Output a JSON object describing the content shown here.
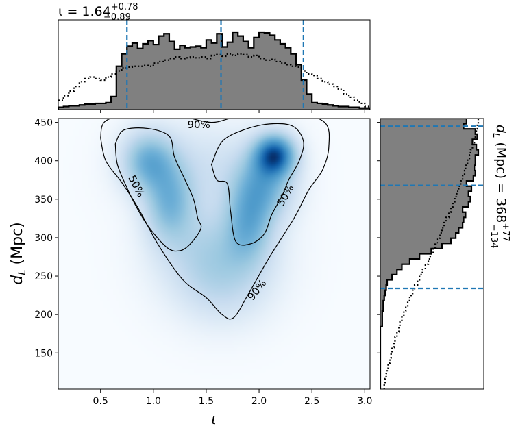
{
  "chart_data": {
    "type": "corner",
    "x_param": {
      "symbol": "ι",
      "label": "ι",
      "median": 1.64,
      "upper": 0.78,
      "lower": 0.89,
      "title_main": "ι = 1.64",
      "title_sup": "+0.78",
      "title_sub": "−0.89",
      "xlim": [
        0.1,
        3.05
      ],
      "ticks": [
        {
          "v": 0.5,
          "label": "0.5"
        },
        {
          "v": 1.0,
          "label": "1.0"
        },
        {
          "v": 1.5,
          "label": "1.5"
        },
        {
          "v": 2.0,
          "label": "2.0"
        },
        {
          "v": 2.5,
          "label": "2.5"
        },
        {
          "v": 3.0,
          "label": "3.0"
        }
      ],
      "dashed_lines": [
        0.75,
        1.64,
        2.42
      ],
      "posterior": [
        0.03,
        0.04,
        0.05,
        0.05,
        0.06,
        0.07,
        0.07,
        0.08,
        0.08,
        0.09,
        0.17,
        0.56,
        0.72,
        0.82,
        0.86,
        0.79,
        0.85,
        0.89,
        0.84,
        0.95,
        0.98,
        0.88,
        0.78,
        0.83,
        0.8,
        0.81,
        0.82,
        0.8,
        0.9,
        0.86,
        0.98,
        0.81,
        0.87,
        1.0,
        0.95,
        0.88,
        0.8,
        0.93,
        1.0,
        0.99,
        0.96,
        0.9,
        0.85,
        0.8,
        0.72,
        0.58,
        0.38,
        0.2,
        0.09,
        0.08,
        0.07,
        0.06,
        0.05,
        0.04,
        0.04,
        0.03,
        0.03,
        0.02,
        0.02
      ],
      "prior": [
        0.12,
        0.18,
        0.24,
        0.3,
        0.36,
        0.4,
        0.42,
        0.4,
        0.38,
        0.42,
        0.46,
        0.5,
        0.54,
        0.55,
        0.56,
        0.56,
        0.57,
        0.56,
        0.6,
        0.62,
        0.64,
        0.66,
        0.68,
        0.66,
        0.67,
        0.68,
        0.67,
        0.68,
        0.66,
        0.7,
        0.71,
        0.69,
        0.72,
        0.7,
        0.72,
        0.71,
        0.68,
        0.7,
        0.66,
        0.64,
        0.65,
        0.62,
        0.6,
        0.58,
        0.56,
        0.55,
        0.5,
        0.46,
        0.44,
        0.4,
        0.36,
        0.33,
        0.3,
        0.26,
        0.2,
        0.16,
        0.12,
        0.08,
        0.04
      ]
    },
    "y_param": {
      "symbol": "d_L",
      "label_main": "d",
      "label_sub": "L",
      "label_unit": " (Mpc)",
      "median": 368,
      "upper": 77,
      "lower": 134,
      "title_main": "d",
      "title_sub_L": "L",
      "title_rest": " (Mpc) = 368",
      "title_sup": "+77",
      "title_sub": "−134",
      "ylim": [
        103,
        455
      ],
      "ticks": [
        {
          "v": 150,
          "label": "150"
        },
        {
          "v": 200,
          "label": "200"
        },
        {
          "v": 250,
          "label": "250"
        },
        {
          "v": 300,
          "label": "300"
        },
        {
          "v": 350,
          "label": "350"
        },
        {
          "v": 400,
          "label": "400"
        },
        {
          "v": 450,
          "label": "450"
        }
      ],
      "dashed_lines": [
        234,
        368,
        445
      ],
      "posterior": [
        0,
        0,
        0,
        0,
        0,
        0,
        0,
        0,
        0,
        0,
        0,
        0,
        0.02,
        0.02,
        0.02,
        0.03,
        0.03,
        0.04,
        0.05,
        0.06,
        0.07,
        0.12,
        0.17,
        0.22,
        0.3,
        0.4,
        0.52,
        0.63,
        0.72,
        0.77,
        0.8,
        0.84,
        0.85,
        0.87,
        0.84,
        0.9,
        0.92,
        0.9,
        0.93,
        0.88,
        0.95,
        0.97,
        0.96,
        0.97,
        0.97,
        1.0,
        0.98,
        0.94,
        0.99,
        0.97,
        0.85,
        0.88
      ],
      "prior": [
        0.04,
        0.05,
        0.06,
        0.07,
        0.08,
        0.1,
        0.11,
        0.12,
        0.14,
        0.15,
        0.17,
        0.19,
        0.2,
        0.22,
        0.24,
        0.26,
        0.28,
        0.3,
        0.33,
        0.35,
        0.38,
        0.4,
        0.43,
        0.46,
        0.49,
        0.51,
        0.54,
        0.56,
        0.58,
        0.61,
        0.63,
        0.65,
        0.67,
        0.7,
        0.72,
        0.74,
        0.76,
        0.78,
        0.8,
        0.82,
        0.84,
        0.86,
        0.87,
        0.89,
        0.91,
        0.92,
        0.94,
        0.96,
        0.97,
        0.98,
        0.99,
        1.0
      ]
    },
    "density_blobs": [
      {
        "x": 0.95,
        "y": 400,
        "sx": 0.17,
        "sy": 26,
        "w": 0.55
      },
      {
        "x": 1.15,
        "y": 345,
        "sx": 0.16,
        "sy": 35,
        "w": 0.5
      },
      {
        "x": 2.15,
        "y": 408,
        "sx": 0.13,
        "sy": 18,
        "w": 1.0
      },
      {
        "x": 2.05,
        "y": 370,
        "sx": 0.19,
        "sy": 32,
        "w": 0.55
      },
      {
        "x": 1.9,
        "y": 320,
        "sx": 0.15,
        "sy": 35,
        "w": 0.45
      },
      {
        "x": 1.6,
        "y": 280,
        "sx": 0.35,
        "sy": 40,
        "w": 0.35
      },
      {
        "x": 1.45,
        "y": 390,
        "sx": 0.4,
        "sy": 40,
        "w": 0.18
      },
      {
        "x": 1.65,
        "y": 230,
        "sx": 0.3,
        "sy": 35,
        "w": 0.15
      }
    ],
    "contours": [
      {
        "label": "90%",
        "points": [
          [
            0.5,
            430
          ],
          [
            0.55,
            452
          ],
          [
            0.85,
            462
          ],
          [
            1.25,
            458
          ],
          [
            1.55,
            450
          ],
          [
            1.8,
            457
          ],
          [
            2.3,
            462
          ],
          [
            2.62,
            450
          ],
          [
            2.66,
            418
          ],
          [
            2.6,
            388
          ],
          [
            2.47,
            362
          ],
          [
            2.33,
            325
          ],
          [
            2.1,
            275
          ],
          [
            1.9,
            227
          ],
          [
            1.76,
            196
          ],
          [
            1.65,
            200
          ],
          [
            1.5,
            222
          ],
          [
            1.28,
            245
          ],
          [
            1.05,
            290
          ],
          [
            0.85,
            340
          ],
          [
            0.7,
            372
          ],
          [
            0.55,
            400
          ],
          [
            0.5,
            430
          ]
        ]
      },
      {
        "label": "50%",
        "points": [
          [
            0.64,
            422
          ],
          [
            0.72,
            440
          ],
          [
            0.95,
            442
          ],
          [
            1.15,
            432
          ],
          [
            1.2,
            405
          ],
          [
            1.3,
            375
          ],
          [
            1.38,
            350
          ],
          [
            1.42,
            325
          ],
          [
            1.45,
            312
          ],
          [
            1.35,
            292
          ],
          [
            1.25,
            283
          ],
          [
            1.13,
            287
          ],
          [
            0.95,
            315
          ],
          [
            0.82,
            345
          ],
          [
            0.75,
            365
          ],
          [
            0.66,
            395
          ],
          [
            0.64,
            422
          ]
        ]
      },
      {
        "label": "50%",
        "points": [
          [
            1.55,
            395
          ],
          [
            1.65,
            425
          ],
          [
            1.85,
            440
          ],
          [
            2.1,
            448
          ],
          [
            2.32,
            445
          ],
          [
            2.42,
            425
          ],
          [
            2.38,
            400
          ],
          [
            2.28,
            375
          ],
          [
            2.22,
            355
          ],
          [
            2.12,
            330
          ],
          [
            2.05,
            305
          ],
          [
            1.92,
            292
          ],
          [
            1.78,
            295
          ],
          [
            1.73,
            335
          ],
          [
            1.7,
            370
          ],
          [
            1.6,
            375
          ],
          [
            1.55,
            395
          ]
        ]
      }
    ],
    "contour_labels": [
      {
        "text": "90%",
        "x": 1.43,
        "y": 447,
        "rot": 0
      },
      {
        "text": "50%",
        "x": 0.84,
        "y": 367,
        "rot": 62
      },
      {
        "text": "50%",
        "x": 2.25,
        "y": 355,
        "rot": -60
      },
      {
        "text": "90%",
        "x": 1.98,
        "y": 232,
        "rot": -52
      }
    ]
  }
}
